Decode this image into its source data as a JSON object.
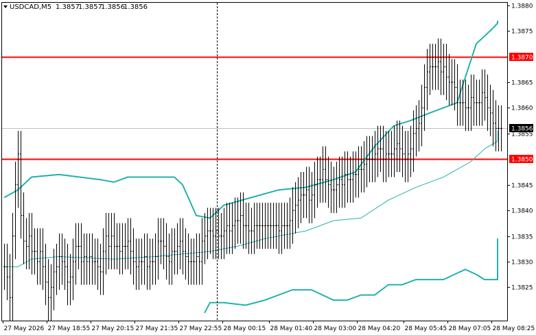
{
  "chart_data": {
    "type": "candlestick",
    "header": {
      "symbol": "USDCAD,M5",
      "open": "1.3857",
      "high": "1.3857",
      "low": "1.3856",
      "close": "1.3856"
    },
    "y_axis": {
      "range": [
        1.38185,
        1.38805
      ],
      "ticks": [
        "1.3880",
        "1.3875",
        "1.3865",
        "1.3860",
        "1.3855",
        "1.3845",
        "1.3840",
        "1.3835",
        "1.3830",
        "1.3825"
      ],
      "tick_values": [
        1.388,
        1.3875,
        1.3865,
        1.386,
        1.3855,
        1.3845,
        1.384,
        1.3835,
        1.383,
        1.3825
      ]
    },
    "x_axis": {
      "tick_labels": [
        "27 May 2026",
        "27 May 18:55",
        "27 May 20:15",
        "27 May 21:35",
        "27 May 22:55",
        "28 May 00:15",
        "28 May 01:40",
        "28 May 03:00",
        "28 May 04:20",
        "28 May 05:45",
        "28 May 07:05",
        "28 May 08:25"
      ],
      "tick_bar_index": [
        0,
        16,
        32,
        48,
        64,
        80,
        97,
        113,
        129,
        146,
        162,
        178
      ]
    },
    "bar_count": 182,
    "session_separator_bar": 78,
    "horizontal_levels": [
      {
        "label": "1.3870",
        "value": 1.387,
        "color": "#ff0000"
      },
      {
        "label": "1.3850",
        "value": 1.385,
        "color": "#ff0000"
      }
    ],
    "current_price": {
      "label": "1.3856",
      "value": 1.3856
    },
    "price_series": [
      1.3829,
      1.3827,
      1.3823,
      1.3835,
      1.3845,
      1.3851,
      1.3839,
      1.3834,
      1.3833,
      1.3835,
      1.3832,
      1.3832,
      1.383,
      1.3832,
      1.3829,
      1.3826,
      1.3823,
      1.3825,
      1.3828,
      1.3829,
      1.3831,
      1.383,
      1.3829,
      1.3826,
      1.3827,
      1.383,
      1.3833,
      1.3833,
      1.383,
      1.3831,
      1.383,
      1.3831,
      1.383,
      1.383,
      1.3829,
      1.3828,
      1.3832,
      1.3835,
      1.3833,
      1.3835,
      1.3833,
      1.3833,
      1.3832,
      1.3833,
      1.3833,
      1.3834,
      1.3832,
      1.383,
      1.3829,
      1.383,
      1.383,
      1.3831,
      1.3829,
      1.383,
      1.383,
      1.3831,
      1.3834,
      1.3834,
      1.3833,
      1.3831,
      1.383,
      1.3832,
      1.3832,
      1.3833,
      1.3834,
      1.3832,
      1.3831,
      1.383,
      1.383,
      1.383,
      1.3831,
      1.383,
      1.3834,
      1.3835,
      1.3836,
      1.3836,
      1.3835,
      1.3836,
      1.3835,
      1.3835,
      1.3836,
      1.3837,
      1.3836,
      1.3837,
      1.3838,
      1.3838,
      1.3839,
      1.3837,
      1.3837,
      1.3836,
      1.3836,
      1.3837,
      1.3837,
      1.3837,
      1.3837,
      1.3837,
      1.3837,
      1.3837,
      1.3837,
      1.3837,
      1.3836,
      1.3837,
      1.3837,
      1.3837,
      1.3838,
      1.384,
      1.3841,
      1.3842,
      1.3843,
      1.3843,
      1.3844,
      1.3842,
      1.3843,
      1.3845,
      1.3846,
      1.3846,
      1.3848,
      1.3846,
      1.3845,
      1.3844,
      1.3844,
      1.3845,
      1.3846,
      1.3845,
      1.3847,
      1.3846,
      1.3846,
      1.3847,
      1.3847,
      1.3848,
      1.3848,
      1.3849,
      1.385,
      1.385,
      1.385,
      1.3851,
      1.3852,
      1.3852,
      1.385,
      1.3851,
      1.3851,
      1.3851,
      1.3852,
      1.3853,
      1.3852,
      1.3851,
      1.385,
      1.3851,
      1.3852,
      1.3855,
      1.3856,
      1.3857,
      1.386,
      1.3864,
      1.3867,
      1.3868,
      1.3868,
      1.3868,
      1.3869,
      1.3867,
      1.3868,
      1.3866,
      1.3865,
      1.3865,
      1.3864,
      1.3861,
      1.3861,
      1.3861,
      1.386,
      1.386,
      1.3862,
      1.3861,
      1.3861,
      1.3861,
      1.3863,
      1.3862,
      1.386,
      1.3859,
      1.3857,
      1.3856,
      1.3856,
      1.3856
    ],
    "bollinger_upper_keypoints": [
      [
        0,
        1.38425
      ],
      [
        5,
        1.3844
      ],
      [
        10,
        1.38465
      ],
      [
        20,
        1.3847
      ],
      [
        35,
        1.3846
      ],
      [
        40,
        1.38455
      ],
      [
        45,
        1.38465
      ],
      [
        55,
        1.38465
      ],
      [
        62,
        1.38465
      ],
      [
        65,
        1.3845
      ],
      [
        70,
        1.3839
      ],
      [
        75,
        1.38385
      ],
      [
        80,
        1.3841
      ],
      [
        90,
        1.38425
      ],
      [
        100,
        1.3844
      ],
      [
        110,
        1.38445
      ],
      [
        120,
        1.3846
      ],
      [
        128,
        1.38475
      ],
      [
        135,
        1.38525
      ],
      [
        142,
        1.38565
      ],
      [
        148,
        1.38575
      ],
      [
        155,
        1.3859
      ],
      [
        165,
        1.3861
      ],
      [
        172,
        1.38725
      ],
      [
        178,
        1.38755
      ],
      [
        185,
        1.38765
      ],
      [
        190,
        1.3877
      ],
      [
        195,
        1.3877
      ]
    ],
    "bollinger_middle_keypoints": [
      [
        0,
        1.3829
      ],
      [
        5,
        1.3829
      ],
      [
        10,
        1.38305
      ],
      [
        20,
        1.3831
      ],
      [
        40,
        1.38305
      ],
      [
        55,
        1.3831
      ],
      [
        75,
        1.3832
      ],
      [
        85,
        1.3833
      ],
      [
        95,
        1.38345
      ],
      [
        110,
        1.3836
      ],
      [
        120,
        1.3838
      ],
      [
        130,
        1.38385
      ],
      [
        140,
        1.3842
      ],
      [
        150,
        1.38445
      ],
      [
        160,
        1.38465
      ],
      [
        170,
        1.38495
      ],
      [
        175,
        1.3852
      ],
      [
        180,
        1.38535
      ],
      [
        190,
        1.38545
      ],
      [
        195,
        1.38555
      ]
    ],
    "bollinger_lower_keypoints": [
      [
        73,
        1.382
      ],
      [
        75,
        1.3822
      ],
      [
        80,
        1.3822
      ],
      [
        88,
        1.38215
      ],
      [
        95,
        1.38225
      ],
      [
        105,
        1.38245
      ],
      [
        112,
        1.38245
      ],
      [
        120,
        1.38225
      ],
      [
        125,
        1.38225
      ],
      [
        130,
        1.38235
      ],
      [
        135,
        1.38235
      ],
      [
        140,
        1.38255
      ],
      [
        145,
        1.38255
      ],
      [
        150,
        1.38265
      ],
      [
        160,
        1.38265
      ],
      [
        168,
        1.38285
      ],
      [
        172,
        1.38275
      ],
      [
        175,
        1.38265
      ],
      [
        180,
        1.38265
      ],
      [
        185,
        1.38285
      ],
      [
        190,
        1.38305
      ],
      [
        195,
        1.38345
      ]
    ]
  }
}
